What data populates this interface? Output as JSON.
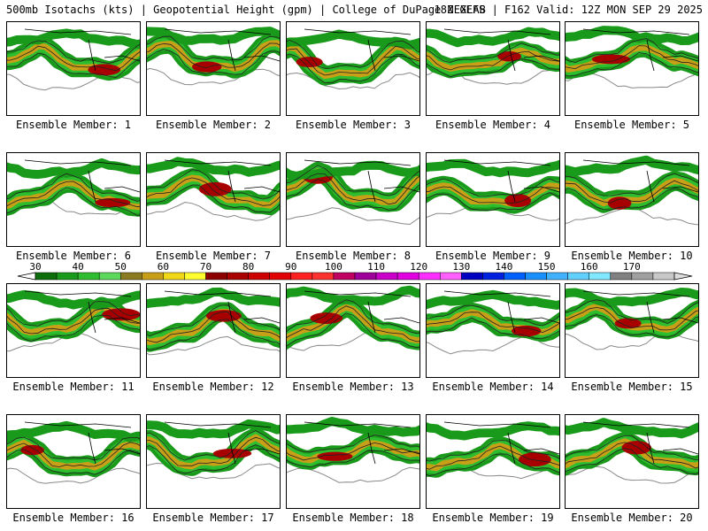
{
  "header": {
    "left": "500mb Isotachs (kts) | Geopotential Height (gpm) | College of DuPage NEXLAB",
    "right": "18Z GEFS | F162 Valid: 12Z MON SEP 29 2025"
  },
  "members": [
    "Ensemble Member: 1",
    "Ensemble Member: 2",
    "Ensemble Member: 3",
    "Ensemble Member: 4",
    "Ensemble Member: 5",
    "Ensemble Member: 6",
    "Ensemble Member: 7",
    "Ensemble Member: 8",
    "Ensemble Member: 9",
    "Ensemble Member: 10",
    "Ensemble Member: 11",
    "Ensemble Member: 12",
    "Ensemble Member: 13",
    "Ensemble Member: 14",
    "Ensemble Member: 15",
    "Ensemble Member: 16",
    "Ensemble Member: 17",
    "Ensemble Member: 18",
    "Ensemble Member: 19",
    "Ensemble Member: 20"
  ],
  "colorbar": {
    "labels": [
      "30",
      "40",
      "50",
      "60",
      "70",
      "80",
      "90",
      "100",
      "110",
      "120",
      "130",
      "140",
      "150",
      "160",
      "170"
    ],
    "colors": [
      "#0b6e0b",
      "#1a9a1a",
      "#2ebd2e",
      "#5cd85c",
      "#8a7a20",
      "#c8a018",
      "#f0d818",
      "#ffff30",
      "#8b0000",
      "#a80000",
      "#cc0000",
      "#e00000",
      "#ff2020",
      "#ff3030",
      "#c00060",
      "#a0009a",
      "#c800c8",
      "#e000e0",
      "#ff30ff",
      "#ff60ff",
      "#0000c0",
      "#0020e0",
      "#0060ff",
      "#1a90ff",
      "#40b0ff",
      "#60d0ff",
      "#80e8ff",
      "#808080",
      "#a0a0a0",
      "#c8c8c8"
    ]
  }
}
